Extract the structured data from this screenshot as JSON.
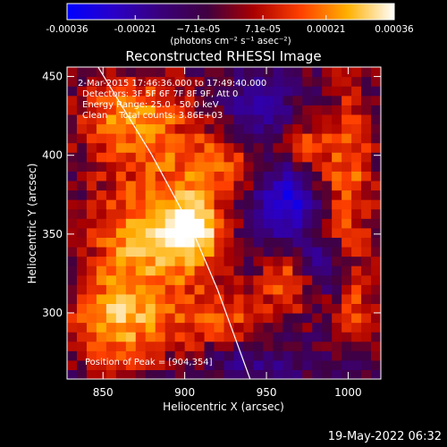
{
  "chart_data": {
    "type": "heatmap",
    "title": "Reconstructed RHESSI Image",
    "xlabel": "Heliocentric X (arcsec)",
    "ylabel": "Heliocentric Y (arcsec)",
    "xlim": [
      828,
      1020
    ],
    "ylim": [
      258,
      456
    ],
    "xticks": [
      850,
      900,
      950,
      1000
    ],
    "yticks": [
      300,
      350,
      400,
      450
    ],
    "colorbar": {
      "range": [
        -0.00036,
        0.00036
      ],
      "tick_values": [
        -0.00036,
        -0.00021,
        -7.1e-05,
        7.1e-05,
        0.00021,
        0.00036
      ],
      "tick_labels": [
        "-0.00036",
        "-0.00021",
        "−7.1e-05",
        "7.1e-05",
        "0.00021",
        "0.00036"
      ],
      "unit_label": "(photons cm⁻² s⁻¹ asec⁻²)",
      "colors": [
        "#0000ff",
        "#2a00c8",
        "#3a007a",
        "#400040",
        "#aa0000",
        "#ff4000",
        "#ffb000",
        "#ffffff"
      ]
    },
    "annotations": [
      "2-Mar-2015 17:46:36.000 to 17:49:40.000",
      "Detectors: 3F 5F 6F 7F 8F 9F, Att 0",
      "Energy Range: 25.0 - 50.0 keV",
      "Clean    Total counts: 3.86E+03"
    ],
    "peak_label": "Position of Peak = [904,354]",
    "peak": [
      904,
      354
    ],
    "limb_curve": [
      [
        847,
        456
      ],
      [
        880,
        400
      ],
      [
        904,
        354
      ],
      [
        920,
        315
      ],
      [
        940,
        258
      ]
    ],
    "sources": [
      {
        "x": 904,
        "y": 354,
        "sx": 14,
        "sy": 16,
        "amp": 1.0
      },
      {
        "x": 872,
        "y": 340,
        "sx": 24,
        "sy": 36,
        "amp": 0.7
      },
      {
        "x": 868,
        "y": 425,
        "sx": 26,
        "sy": 20,
        "amp": 0.65
      },
      {
        "x": 920,
        "y": 395,
        "sx": 22,
        "sy": 14,
        "amp": 0.5
      },
      {
        "x": 855,
        "y": 290,
        "sx": 20,
        "sy": 18,
        "amp": 0.55
      },
      {
        "x": 925,
        "y": 295,
        "sx": 24,
        "sy": 18,
        "amp": 0.45
      },
      {
        "x": 963,
        "y": 320,
        "sx": 10,
        "sy": 12,
        "amp": 0.55
      },
      {
        "x": 1000,
        "y": 385,
        "sx": 12,
        "sy": 45,
        "amp": 0.55
      },
      {
        "x": 975,
        "y": 405,
        "sx": 10,
        "sy": 12,
        "amp": 0.4
      },
      {
        "x": 1005,
        "y": 300,
        "sx": 10,
        "sy": 14,
        "amp": 0.4
      },
      {
        "x": 962,
        "y": 372,
        "sx": 13,
        "sy": 16,
        "amp": -0.75
      },
      {
        "x": 945,
        "y": 430,
        "sx": 14,
        "sy": 14,
        "amp": -0.35
      },
      {
        "x": 940,
        "y": 270,
        "sx": 20,
        "sy": 10,
        "amp": -0.35
      },
      {
        "x": 985,
        "y": 330,
        "sx": 10,
        "sy": 12,
        "amp": -0.4
      }
    ]
  },
  "footer": {
    "timestamp": "19-May-2022 06:32"
  }
}
